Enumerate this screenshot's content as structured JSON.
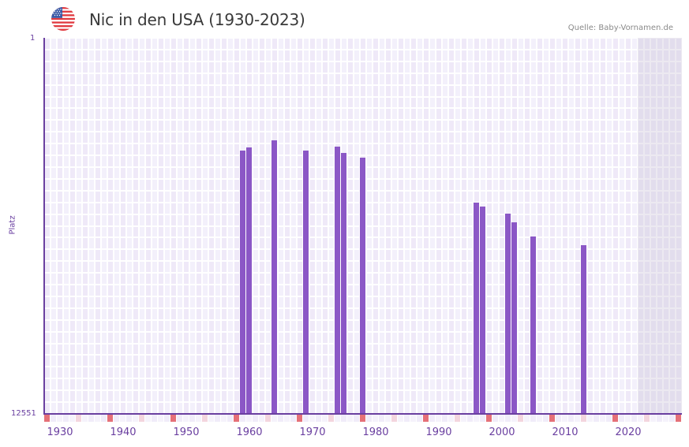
{
  "header": {
    "flag_icon": "us-flag-icon",
    "title": "Nic in den USA (1930-2023)",
    "source": "Quelle: Baby-Vornamen.de"
  },
  "colors": {
    "bar": "#8b57c6",
    "axis": "#6a3fa0",
    "cell_a": "#efe9f8",
    "cell_b": "#f3f0fb",
    "future_cell": "#e2dded",
    "marker_decade": "#e57078",
    "marker_half": "#f3d5de",
    "marker_plain": "#f0ecf9"
  },
  "chart_data": {
    "type": "bar",
    "title": "Nic in den USA (1930-2023)",
    "xlabel": "",
    "ylabel": "Platz",
    "y_inverted": true,
    "ylim": [
      1,
      12551
    ],
    "y_tick_labels": [
      "1",
      "12551"
    ],
    "x_range": [
      1928,
      2028
    ],
    "x_tick_labels": [
      "1930",
      "1940",
      "1950",
      "1960",
      "1970",
      "1980",
      "1990",
      "2000",
      "2010",
      "2020"
    ],
    "grid": true,
    "shaded_future_from": 2022,
    "x": [
      1959,
      1960,
      1964,
      1969,
      1974,
      1975,
      1978,
      1996,
      1997,
      2001,
      2002,
      2005,
      2013
    ],
    "values": [
      3750,
      3670,
      3410,
      3750,
      3640,
      3830,
      3990,
      5490,
      5620,
      5880,
      6170,
      6620,
      6930
    ],
    "series": [
      {
        "name": "Platz",
        "x": [
          1959,
          1960,
          1964,
          1969,
          1974,
          1975,
          1978,
          1996,
          1997,
          2001,
          2002,
          2005,
          2013
        ],
        "values": [
          3750,
          3670,
          3410,
          3750,
          3640,
          3830,
          3990,
          5490,
          5620,
          5880,
          6170,
          6620,
          6930
        ]
      }
    ]
  }
}
